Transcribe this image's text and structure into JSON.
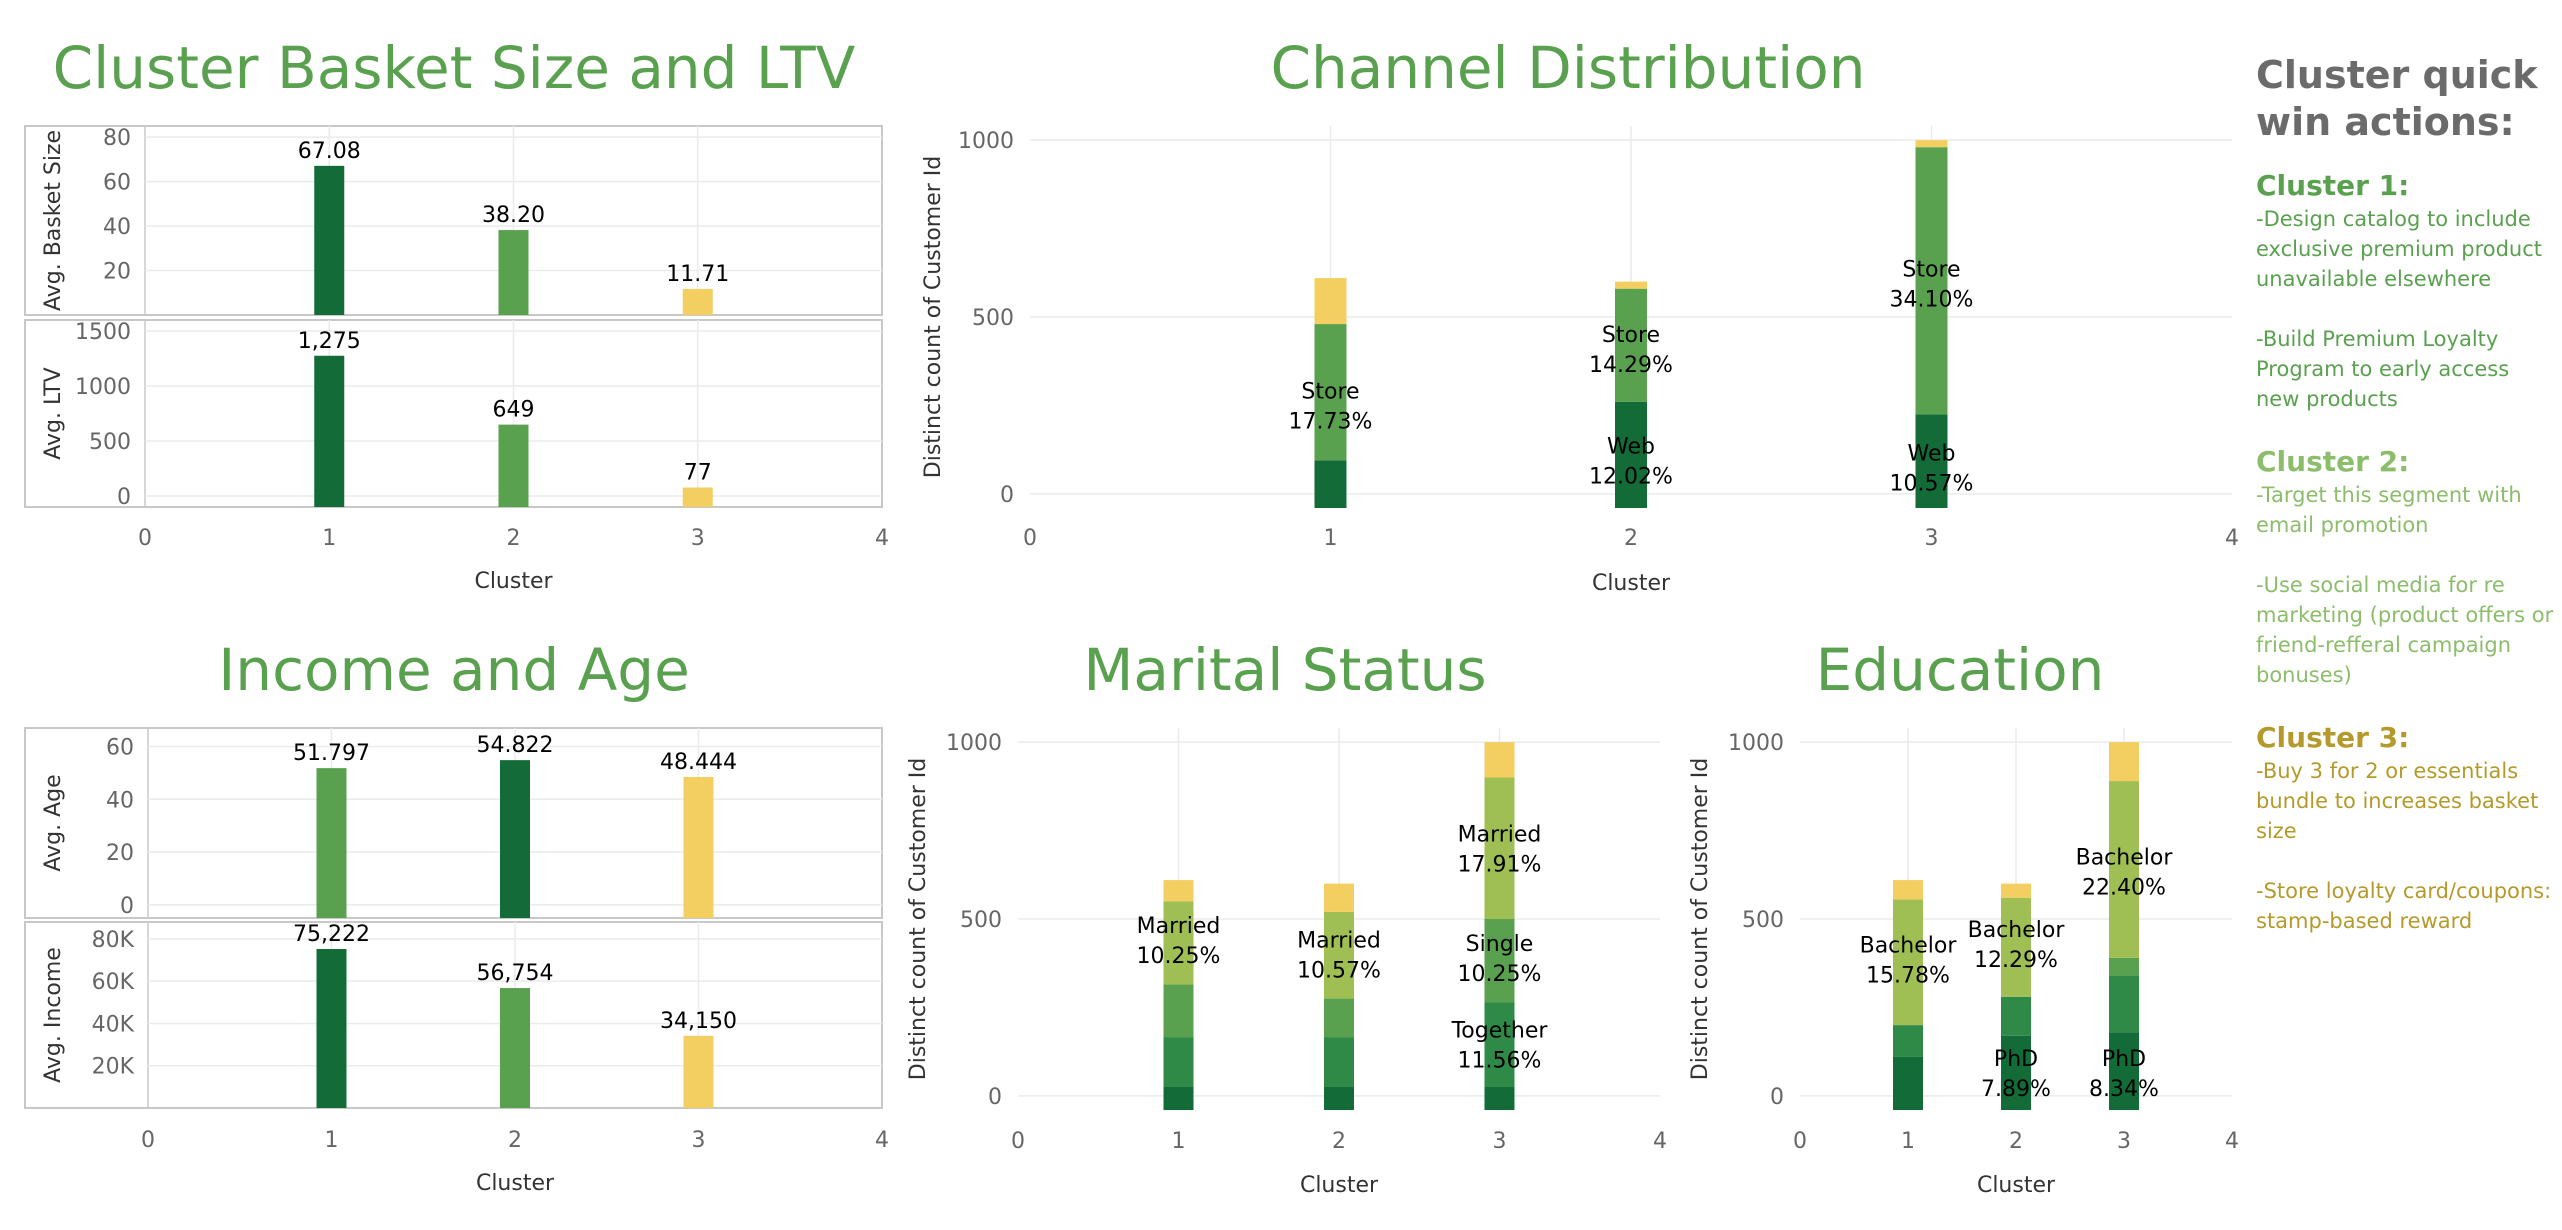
{
  "colors": {
    "dark_green": "#136b37",
    "mid_green": "#2f8a48",
    "green": "#59a14f",
    "light_green": "#9fbf55",
    "yellow": "#f2cf60",
    "title_green": "#59a14f",
    "cluster1_text": "#59a14f",
    "cluster2_text": "#8bbd6a",
    "cluster3_text": "#b59a2b",
    "grid": "#ebebeb"
  },
  "sidebar": {
    "title": "Cluster quick win actions:",
    "clusters": [
      {
        "heading": "Cluster 1:",
        "color": "#59a14f",
        "actions": [
          "-Design catalog to include exclusive premium product unavailable elsewhere",
          "-Build Premium Loyalty Program to early access new products"
        ]
      },
      {
        "heading": "Cluster 2:",
        "color": "#8bbd6a",
        "actions": [
          "-Target this segment with email promotion",
          "-Use social media for re marketing (product offers or friend-refferal campaign bonuses)"
        ]
      },
      {
        "heading": "Cluster 3:",
        "color": "#b59a2b",
        "actions": [
          "-Buy 3 for 2 or essentials bundle to increases basket size",
          "-Store loyalty card/coupons: stamp-based reward"
        ]
      }
    ]
  },
  "chart_data": [
    {
      "type": "bar",
      "title": "Cluster Basket Size and LTV",
      "xlabel": "Cluster",
      "x_ticks": [
        "0",
        "1",
        "2",
        "3",
        "4"
      ],
      "xlim": [
        0,
        4
      ],
      "panels": [
        {
          "ylabel": "Avg. Basket Size",
          "ylim": [
            0,
            85
          ],
          "y_ticks": [
            "20",
            "40",
            "60",
            "80"
          ],
          "y_tick_values": [
            20,
            40,
            60,
            80
          ],
          "bars": [
            {
              "x": 1,
              "value": 67.08,
              "label": "67.08",
              "color": "#136b37"
            },
            {
              "x": 2,
              "value": 38.2,
              "label": "38.20",
              "color": "#59a14f"
            },
            {
              "x": 3,
              "value": 11.71,
              "label": "11.71",
              "color": "#f2cf60"
            }
          ]
        },
        {
          "ylabel": "Avg. LTV",
          "ylim": [
            -100,
            1600
          ],
          "y_ticks": [
            "0",
            "500",
            "1000",
            "1500"
          ],
          "y_tick_values": [
            0,
            500,
            1000,
            1500
          ],
          "bars": [
            {
              "x": 1,
              "value": 1275,
              "label": "1,275",
              "color": "#136b37"
            },
            {
              "x": 2,
              "value": 649,
              "label": "649",
              "color": "#59a14f"
            },
            {
              "x": 3,
              "value": 77,
              "label": "77",
              "color": "#f2cf60"
            }
          ]
        }
      ]
    },
    {
      "type": "bar",
      "title": "Income and Age",
      "xlabel": "Cluster",
      "x_ticks": [
        "0",
        "1",
        "2",
        "3",
        "4"
      ],
      "xlim": [
        0,
        4
      ],
      "panels": [
        {
          "ylabel": "Avg. Age",
          "ylim": [
            -5,
            67
          ],
          "y_ticks": [
            "0",
            "20",
            "40",
            "60"
          ],
          "y_tick_values": [
            0,
            20,
            40,
            60
          ],
          "bars": [
            {
              "x": 1,
              "value": 51.797,
              "label": "51.797",
              "color": "#59a14f"
            },
            {
              "x": 2,
              "value": 54.822,
              "label": "54.822",
              "color": "#136b37"
            },
            {
              "x": 3,
              "value": 48.444,
              "label": "48.444",
              "color": "#f2cf60"
            }
          ]
        },
        {
          "ylabel": "Avg. Income",
          "ylim": [
            0,
            88000
          ],
          "y_ticks": [
            "20K",
            "40K",
            "60K",
            "80K"
          ],
          "y_tick_values": [
            20000,
            40000,
            60000,
            80000
          ],
          "bars": [
            {
              "x": 1,
              "value": 75222,
              "label": "75,222",
              "color": "#136b37"
            },
            {
              "x": 2,
              "value": 56754,
              "label": "56,754",
              "color": "#59a14f"
            },
            {
              "x": 3,
              "value": 34150,
              "label": "34,150",
              "color": "#f2cf60"
            }
          ]
        }
      ]
    },
    {
      "type": "bar",
      "stacked": true,
      "title": "Channel Distribution",
      "xlabel": "Cluster",
      "ylabel": "Distinct count of Customer Id",
      "x_ticks": [
        "0",
        "1",
        "2",
        "3",
        "4"
      ],
      "xlim": [
        0,
        4
      ],
      "ylim": [
        -40,
        1040
      ],
      "y_ticks": [
        "0",
        "500",
        "1000"
      ],
      "y_tick_values": [
        0,
        500,
        1000
      ],
      "stacks": [
        {
          "x": 1,
          "segments": [
            {
              "value": 95,
              "color": "#136b37"
            },
            {
              "value": 385,
              "color": "#59a14f"
            },
            {
              "value": 130,
              "color": "#f2cf60"
            }
          ]
        },
        {
          "x": 2,
          "segments": [
            {
              "value": 260,
              "color": "#136b37"
            },
            {
              "value": 320,
              "color": "#59a14f"
            },
            {
              "value": 20,
              "color": "#f2cf60"
            }
          ]
        },
        {
          "x": 3,
          "segments": [
            {
              "value": 225,
              "color": "#136b37"
            },
            {
              "value": 755,
              "color": "#59a14f"
            },
            {
              "value": 20,
              "color": "#f2cf60"
            }
          ]
        }
      ],
      "annotations": [
        {
          "x": 1,
          "y": 250,
          "lines": [
            "Store",
            "17.73%"
          ]
        },
        {
          "x": 2,
          "y": 410,
          "lines": [
            "Store",
            "14.29%"
          ]
        },
        {
          "x": 2,
          "y": 95,
          "lines": [
            "Web",
            "12.02%"
          ]
        },
        {
          "x": 3,
          "y": 595,
          "lines": [
            "Store",
            "34.10%"
          ]
        },
        {
          "x": 3,
          "y": 75,
          "lines": [
            "Web",
            "10.57%"
          ]
        }
      ]
    },
    {
      "type": "bar",
      "stacked": true,
      "title": "Marital Status",
      "xlabel": "Cluster",
      "ylabel": "Distinct count of Customer Id",
      "x_ticks": [
        "0",
        "1",
        "2",
        "3",
        "4"
      ],
      "xlim": [
        0,
        4
      ],
      "ylim": [
        -40,
        1040
      ],
      "y_ticks": [
        "0",
        "500",
        "1000"
      ],
      "y_tick_values": [
        0,
        500,
        1000
      ],
      "stacks": [
        {
          "x": 1,
          "segments": [
            {
              "value": 25,
              "color": "#136b37"
            },
            {
              "value": 140,
              "color": "#2f8a48"
            },
            {
              "value": 150,
              "color": "#59a14f"
            },
            {
              "value": 235,
              "color": "#9fbf55"
            },
            {
              "value": 60,
              "color": "#f2cf60"
            }
          ]
        },
        {
          "x": 2,
          "segments": [
            {
              "value": 25,
              "color": "#136b37"
            },
            {
              "value": 140,
              "color": "#2f8a48"
            },
            {
              "value": 110,
              "color": "#59a14f"
            },
            {
              "value": 245,
              "color": "#9fbf55"
            },
            {
              "value": 80,
              "color": "#f2cf60"
            }
          ]
        },
        {
          "x": 3,
          "segments": [
            {
              "value": 25,
              "color": "#136b37"
            },
            {
              "value": 240,
              "color": "#2f8a48"
            },
            {
              "value": 235,
              "color": "#59a14f"
            },
            {
              "value": 400,
              "color": "#9fbf55"
            },
            {
              "value": 100,
              "color": "#f2cf60"
            }
          ]
        }
      ],
      "annotations": [
        {
          "x": 1,
          "y": 440,
          "lines": [
            "Married",
            "10.25%"
          ]
        },
        {
          "x": 2,
          "y": 400,
          "lines": [
            "Married",
            "10.57%"
          ]
        },
        {
          "x": 3,
          "y": 700,
          "lines": [
            "Married",
            "17.91%"
          ]
        },
        {
          "x": 3,
          "y": 390,
          "lines": [
            "Single",
            "10.25%"
          ]
        },
        {
          "x": 3,
          "y": 145,
          "lines": [
            "Together",
            "11.56%"
          ]
        }
      ]
    },
    {
      "type": "bar",
      "stacked": true,
      "title": "Education",
      "xlabel": "Cluster",
      "ylabel": "Distinct count of Customer Id",
      "x_ticks": [
        "0",
        "1",
        "2",
        "3",
        "4"
      ],
      "xlim": [
        0,
        4
      ],
      "ylim": [
        -40,
        1040
      ],
      "y_ticks": [
        "0",
        "500",
        "1000"
      ],
      "y_tick_values": [
        0,
        500,
        1000
      ],
      "stacks": [
        {
          "x": 1,
          "segments": [
            {
              "value": 110,
              "color": "#136b37"
            },
            {
              "value": 90,
              "color": "#2f8a48"
            },
            {
              "value": 355,
              "color": "#9fbf55"
            },
            {
              "value": 55,
              "color": "#f2cf60"
            }
          ]
        },
        {
          "x": 2,
          "segments": [
            {
              "value": 170,
              "color": "#136b37"
            },
            {
              "value": 110,
              "color": "#2f8a48"
            },
            {
              "value": 280,
              "color": "#9fbf55"
            },
            {
              "value": 40,
              "color": "#f2cf60"
            }
          ]
        },
        {
          "x": 3,
          "segments": [
            {
              "value": 180,
              "color": "#136b37"
            },
            {
              "value": 160,
              "color": "#2f8a48"
            },
            {
              "value": 50,
              "color": "#59a14f"
            },
            {
              "value": 500,
              "color": "#9fbf55"
            },
            {
              "value": 110,
              "color": "#f2cf60"
            }
          ]
        }
      ],
      "annotations": [
        {
          "x": 1,
          "y": 385,
          "lines": [
            "Bachelor",
            "15.78%"
          ]
        },
        {
          "x": 2,
          "y": 430,
          "lines": [
            "Bachelor",
            "12.29%"
          ]
        },
        {
          "x": 2,
          "y": 65,
          "lines": [
            "PhD",
            "7.89%"
          ]
        },
        {
          "x": 3,
          "y": 635,
          "lines": [
            "Bachelor",
            "22.40%"
          ]
        },
        {
          "x": 3,
          "y": 65,
          "lines": [
            "PhD",
            "8.34%"
          ]
        }
      ]
    }
  ]
}
